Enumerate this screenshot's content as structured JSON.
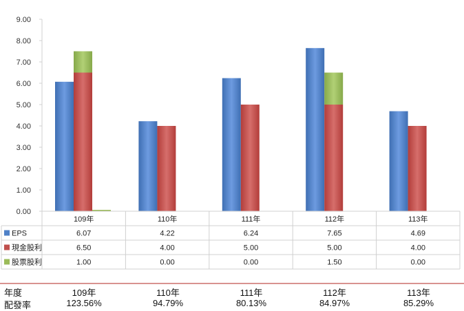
{
  "chart_data": {
    "type": "bar",
    "categories": [
      "109年",
      "110年",
      "111年",
      "112年",
      "113年"
    ],
    "ylim": [
      0,
      9
    ],
    "yticks": [
      "0.00",
      "1.00",
      "2.00",
      "3.00",
      "4.00",
      "5.00",
      "6.00",
      "7.00",
      "8.00",
      "9.00"
    ],
    "series": [
      {
        "name": "EPS",
        "values": [
          6.07,
          4.22,
          6.24,
          7.65,
          4.69
        ],
        "labels": [
          "6.07",
          "4.22",
          "6.24",
          "7.65",
          "4.69"
        ],
        "color": "#4f81c7"
      },
      {
        "name": "現金股利",
        "values": [
          6.5,
          4.0,
          5.0,
          5.0,
          4.0
        ],
        "labels": [
          "6.50",
          "4.00",
          "5.00",
          "5.00",
          "4.00"
        ],
        "color": "#c0504d"
      },
      {
        "name": "股票股利",
        "values": [
          1.0,
          0.0,
          0.0,
          1.5,
          0.0
        ],
        "labels": [
          "1.00",
          "0.00",
          "0.00",
          "1.50",
          "0.00"
        ],
        "color": "#9bbb59"
      }
    ],
    "grid": false,
    "legend": "data-table-left"
  },
  "summary": {
    "year_label": "年度",
    "ratio_label": "配發率",
    "years": [
      "109年",
      "110年",
      "111年",
      "112年",
      "113年"
    ],
    "ratios": [
      "123.56%",
      "94.79%",
      "80.13%",
      "84.97%",
      "85.29%"
    ]
  },
  "colors": {
    "line": "#c0504d",
    "axis": "#d0d0d0"
  }
}
